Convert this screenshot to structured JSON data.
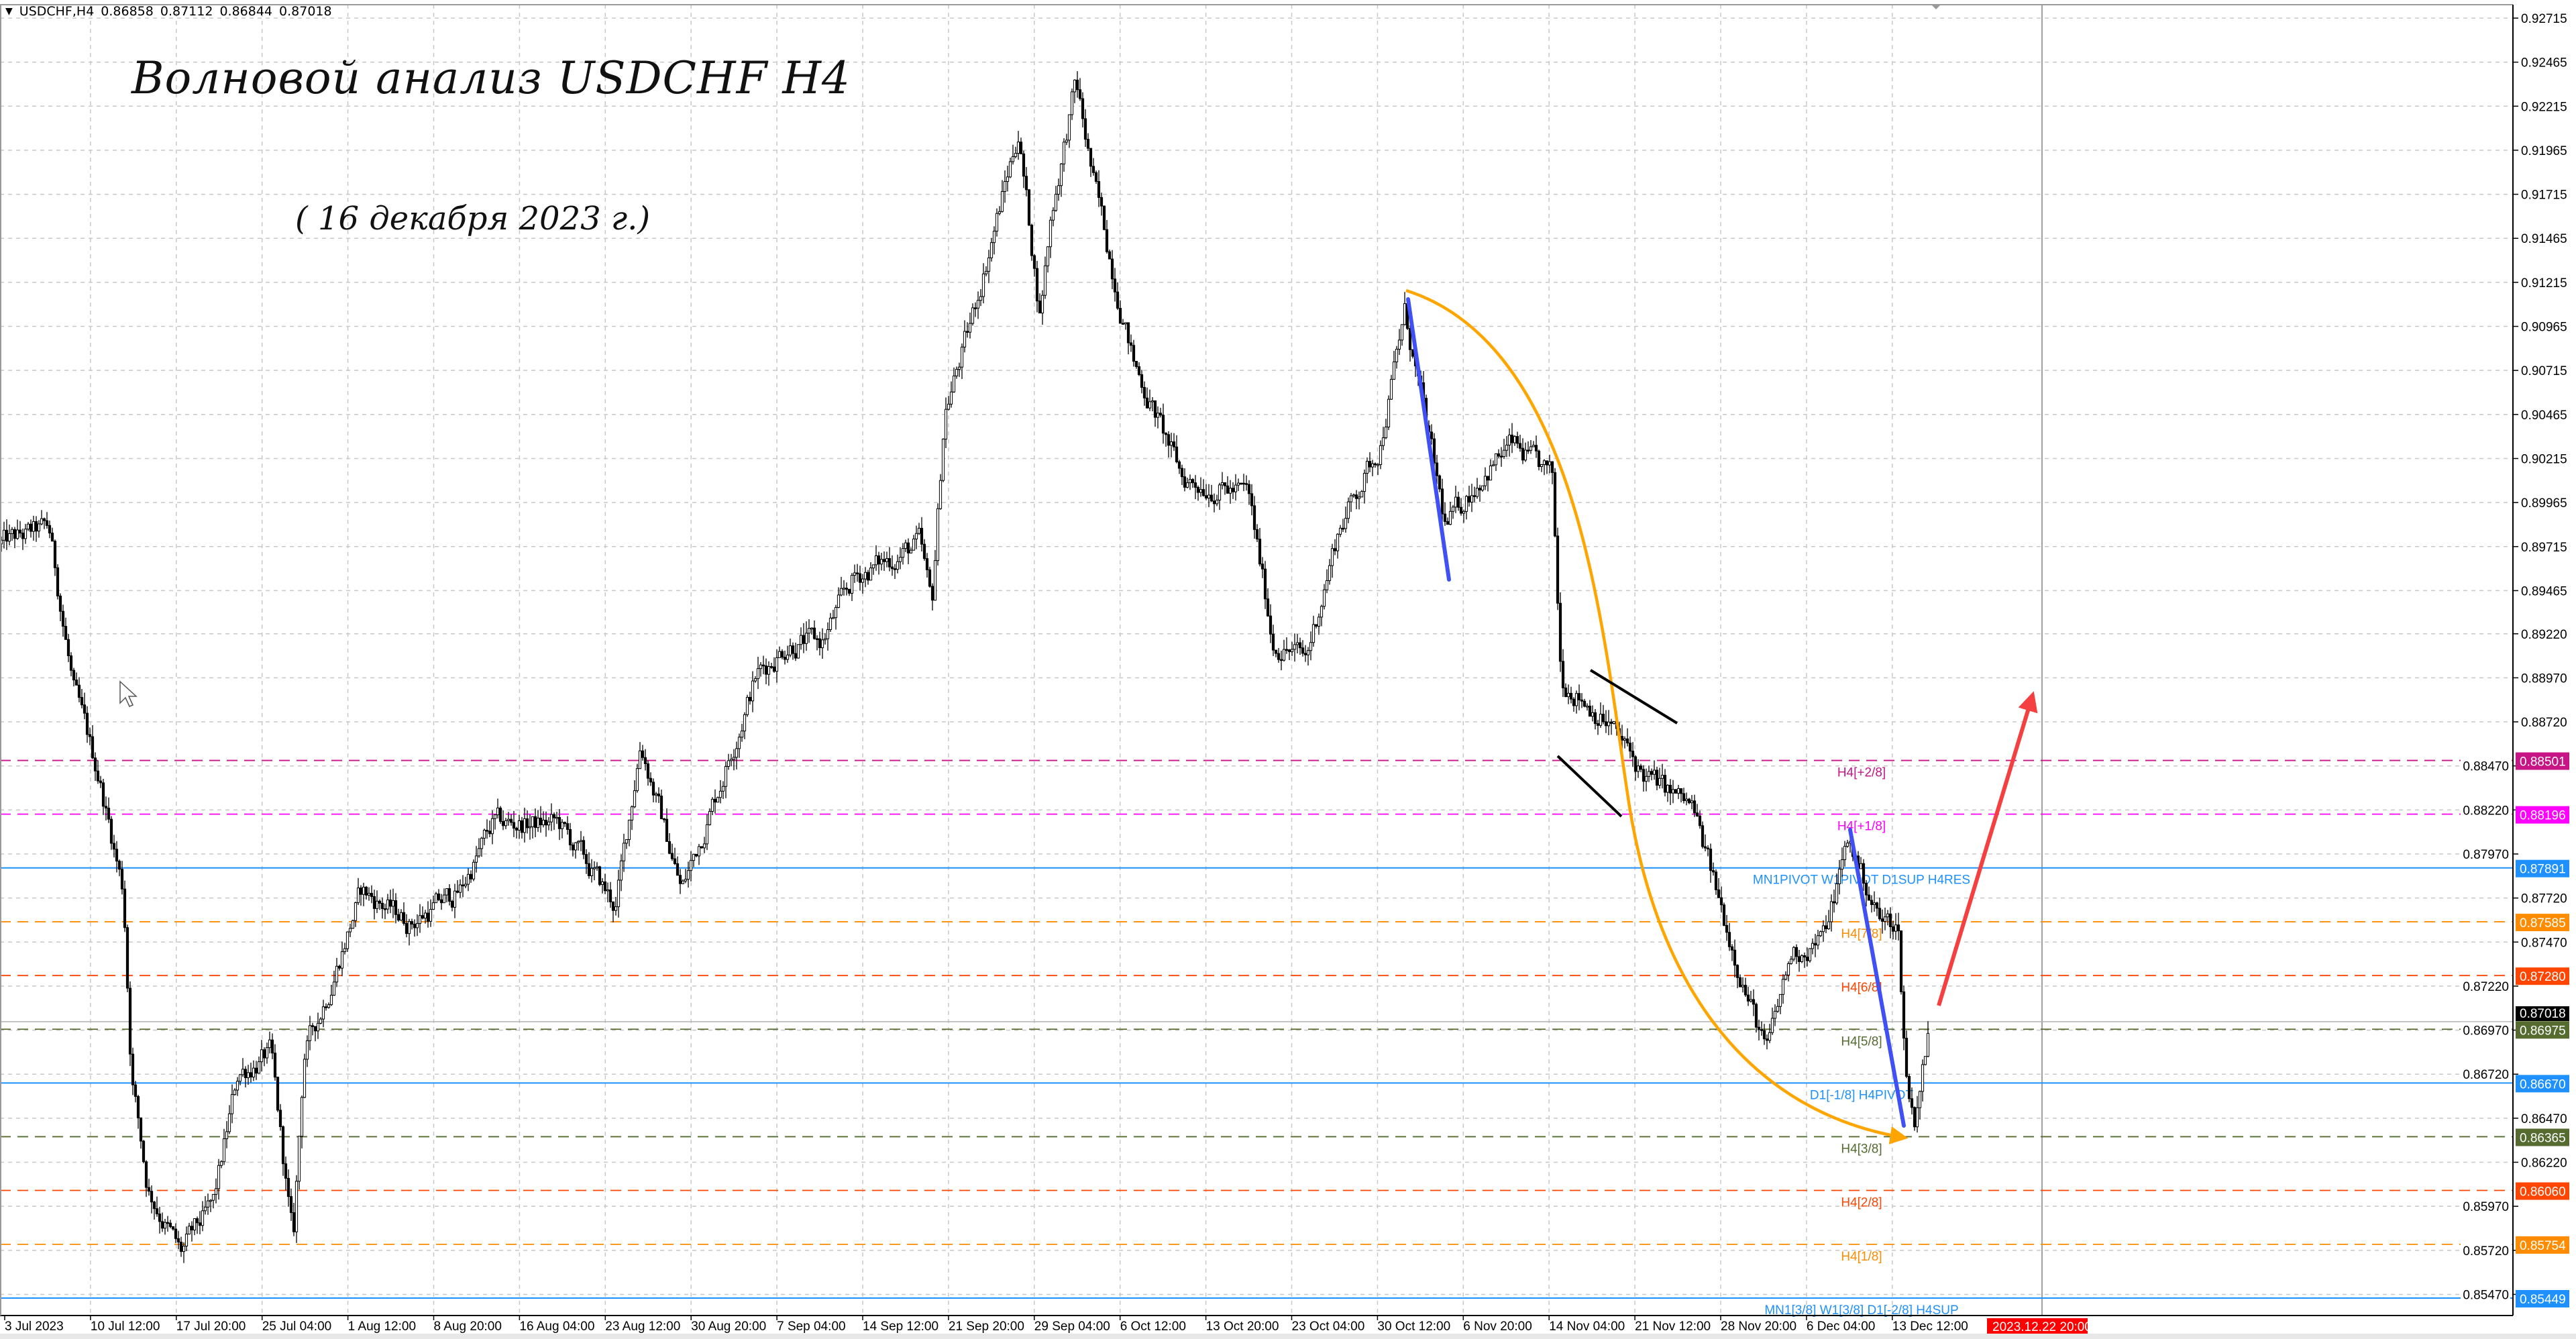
{
  "header": {
    "symbol": "USDCHF,H4",
    "open": "0.86858",
    "high": "0.87112",
    "low": "0.86844",
    "close": "0.87018",
    "menu_icon": "triangle-down-icon"
  },
  "annotations": {
    "title": "Волновой анализ USDCHF H4",
    "subtitle": "( 16 декабря 2023 г.)"
  },
  "chart_data": {
    "type": "candlestick",
    "symbol": "USDCHF",
    "timeframe": "H4",
    "grid": true,
    "ylim": [
      0.854,
      0.9276
    ],
    "y_ticks": [
      "0.92715",
      "0.92465",
      "0.92215",
      "0.91965",
      "0.91715",
      "0.91465",
      "0.91215",
      "0.90965",
      "0.90715",
      "0.90465",
      "0.90215",
      "0.89965",
      "0.89715",
      "0.89465",
      "0.89220",
      "0.88970",
      "0.88720",
      "0.88470",
      "0.88220",
      "0.87970",
      "0.87720",
      "0.87470",
      "0.87220",
      "0.86970",
      "0.86720",
      "0.86470",
      "0.86220",
      "0.85970",
      "0.85720",
      "0.85470"
    ],
    "x_ticks": [
      "3 Jul 2023",
      "10 Jul 12:00",
      "17 Jul 20:00",
      "25 Jul 04:00",
      "1 Aug 12:00",
      "8 Aug 20:00",
      "16 Aug 04:00",
      "23 Aug 12:00",
      "30 Aug 20:00",
      "7 Sep 04:00",
      "14 Sep 12:00",
      "21 Sep 20:00",
      "29 Sep 04:00",
      "6 Oct 12:00",
      "13 Oct 20:00",
      "23 Oct 04:00",
      "30 Oct 12:00",
      "6 Nov 20:00",
      "14 Nov 04:00",
      "21 Nov 12:00",
      "28 Nov 20:00",
      "6 Dec 04:00",
      "13 Dec 12:00"
    ],
    "crosshair_time_label": "2023.12.22 20:00",
    "current_price": {
      "value": "0.87018",
      "color": "#000000"
    },
    "levels": [
      {
        "value": "0.88501",
        "label": "H4[+2/8]",
        "color": "#c71585",
        "style": "dashed"
      },
      {
        "value": "0.88196",
        "label": "H4[+1/8]",
        "color": "#ff00ff",
        "style": "dashed"
      },
      {
        "value": "0.87891",
        "label": "MN1PIVOT W1PIVOT D1SUP H4RES",
        "color": "#1e90ff",
        "style": "solid"
      },
      {
        "value": "0.87585",
        "label": "H4[7/8]",
        "color": "#ff8c00",
        "style": "dashed"
      },
      {
        "value": "0.87280",
        "label": "H4[6/8]",
        "color": "#ff4500",
        "style": "dashed"
      },
      {
        "value": "0.86975",
        "label": "H4[5/8]",
        "color": "#556b2f",
        "style": "dashed"
      },
      {
        "value": "0.86670",
        "label": "D1[-1/8] H4PIVOT",
        "color": "#1e90ff",
        "style": "solid"
      },
      {
        "value": "0.86365",
        "label": "H4[3/8]",
        "color": "#556b2f",
        "style": "dashed"
      },
      {
        "value": "0.86060",
        "label": "H4[2/8]",
        "color": "#ff4500",
        "style": "dashed"
      },
      {
        "value": "0.85754",
        "label": "H4[1/8]",
        "color": "#ff8c00",
        "style": "dashed"
      },
      {
        "value": "0.85449",
        "label": "MN1[3/8] W1[3/8] D1[-2/8] H4SUP",
        "color": "#1e90ff",
        "style": "solid"
      }
    ],
    "drawings": {
      "wave_lines_color": "#3f51f5",
      "curve_color": "#ffa500",
      "forecast_arrow_color": "#f44040",
      "channel_lines_color": "#000000"
    }
  }
}
